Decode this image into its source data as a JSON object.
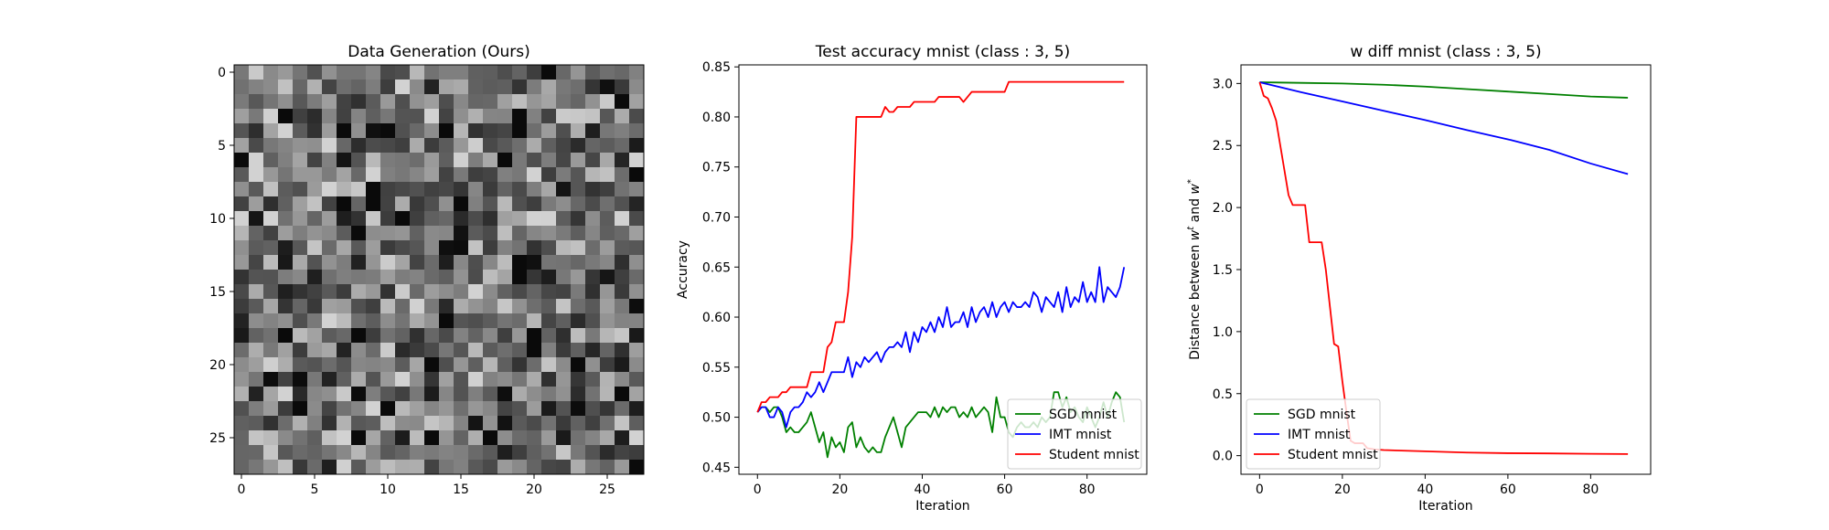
{
  "chart_data": [
    {
      "type": "heatmap",
      "title": "Data Generation (Ours)",
      "xlabel": "",
      "ylabel": "",
      "rows": 28,
      "cols": 28,
      "colormap": "gray",
      "xlim": [
        -0.5,
        27.5
      ],
      "ylim": [
        27.5,
        -0.5
      ],
      "xticks": [
        0,
        5,
        10,
        15,
        20,
        25
      ],
      "yticks": [
        0,
        5,
        10,
        15,
        20,
        25
      ],
      "values_note": "random noise pattern, grayscale intensities in [0,1]"
    },
    {
      "type": "line",
      "title": "Test accuracy mnist (class : 3, 5)",
      "xlabel": "Iteration",
      "ylabel": "Accuracy",
      "xlim": [
        -4.5,
        94.5
      ],
      "ylim": [
        0.443,
        0.852
      ],
      "xticks": [
        0,
        20,
        40,
        60,
        80
      ],
      "yticks": [
        0.45,
        0.5,
        0.55,
        0.6,
        0.65,
        0.7,
        0.75,
        0.8,
        0.85
      ],
      "legend": "lower-right",
      "series": [
        {
          "name": "SGD mnist",
          "color": "#008000",
          "values": [
            0.505,
            0.51,
            0.51,
            0.505,
            0.51,
            0.51,
            0.5,
            0.485,
            0.49,
            0.485,
            0.485,
            0.49,
            0.495,
            0.505,
            0.49,
            0.475,
            0.485,
            0.46,
            0.48,
            0.47,
            0.475,
            0.465,
            0.49,
            0.495,
            0.47,
            0.48,
            0.47,
            0.465,
            0.47,
            0.465,
            0.465,
            0.48,
            0.49,
            0.5,
            0.485,
            0.47,
            0.49,
            0.495,
            0.5,
            0.505,
            0.505,
            0.505,
            0.5,
            0.51,
            0.5,
            0.51,
            0.505,
            0.51,
            0.51,
            0.5,
            0.505,
            0.5,
            0.51,
            0.5,
            0.505,
            0.51,
            0.505,
            0.485,
            0.52,
            0.5,
            0.5,
            0.485,
            0.48,
            0.49,
            0.495,
            0.49,
            0.49,
            0.495,
            0.49,
            0.5,
            0.495,
            0.5,
            0.525,
            0.525,
            0.51,
            0.52,
            0.505,
            0.51,
            0.5,
            0.495,
            0.51,
            0.5,
            0.49,
            0.5,
            0.515,
            0.5,
            0.515,
            0.525,
            0.52,
            0.495
          ]
        },
        {
          "name": "IMT mnist",
          "color": "#0000ff",
          "values": [
            0.505,
            0.51,
            0.51,
            0.5,
            0.5,
            0.51,
            0.505,
            0.49,
            0.505,
            0.51,
            0.51,
            0.515,
            0.525,
            0.52,
            0.525,
            0.535,
            0.525,
            0.535,
            0.545,
            0.545,
            0.545,
            0.545,
            0.56,
            0.54,
            0.555,
            0.55,
            0.56,
            0.555,
            0.56,
            0.565,
            0.555,
            0.565,
            0.57,
            0.57,
            0.575,
            0.57,
            0.585,
            0.565,
            0.585,
            0.575,
            0.59,
            0.585,
            0.595,
            0.585,
            0.6,
            0.59,
            0.61,
            0.59,
            0.595,
            0.595,
            0.605,
            0.59,
            0.61,
            0.595,
            0.605,
            0.61,
            0.6,
            0.615,
            0.6,
            0.61,
            0.615,
            0.605,
            0.615,
            0.61,
            0.61,
            0.615,
            0.61,
            0.625,
            0.62,
            0.605,
            0.62,
            0.615,
            0.61,
            0.625,
            0.605,
            0.63,
            0.61,
            0.62,
            0.615,
            0.635,
            0.615,
            0.625,
            0.615,
            0.65,
            0.615,
            0.63,
            0.625,
            0.62,
            0.63,
            0.65
          ]
        },
        {
          "name": "Student mnist",
          "color": "#ff0000",
          "values": [
            0.505,
            0.515,
            0.515,
            0.52,
            0.52,
            0.52,
            0.525,
            0.525,
            0.53,
            0.53,
            0.53,
            0.53,
            0.53,
            0.545,
            0.545,
            0.545,
            0.545,
            0.57,
            0.575,
            0.595,
            0.595,
            0.595,
            0.625,
            0.68,
            0.8,
            0.8,
            0.8,
            0.8,
            0.8,
            0.8,
            0.8,
            0.81,
            0.805,
            0.805,
            0.81,
            0.81,
            0.81,
            0.81,
            0.815,
            0.815,
            0.815,
            0.815,
            0.815,
            0.815,
            0.82,
            0.82,
            0.82,
            0.82,
            0.82,
            0.82,
            0.815,
            0.82,
            0.825,
            0.825,
            0.825,
            0.825,
            0.825,
            0.825,
            0.825,
            0.825,
            0.825,
            0.835,
            0.835,
            0.835,
            0.835,
            0.835,
            0.835,
            0.835,
            0.835,
            0.835,
            0.835,
            0.835,
            0.835,
            0.835,
            0.835,
            0.835,
            0.835,
            0.835,
            0.835,
            0.835,
            0.835,
            0.835,
            0.835,
            0.835,
            0.835,
            0.835,
            0.835,
            0.835,
            0.835,
            0.835
          ]
        }
      ]
    },
    {
      "type": "line",
      "title": "w diff mnist (class : 3, 5)",
      "xlabel": "Iteration",
      "ylabel": "Distance between w^t and w^*",
      "ylabel_main": "Distance between",
      "ylabel_w1": "w",
      "ylabel_w1_sup": "t",
      "ylabel_and": " and ",
      "ylabel_w2": "w",
      "ylabel_w2_sup": "*",
      "xlim": [
        -4.5,
        94.5
      ],
      "ylim": [
        -0.15,
        3.15
      ],
      "xticks": [
        0,
        20,
        40,
        60,
        80
      ],
      "yticks": [
        0.0,
        0.5,
        1.0,
        1.5,
        2.0,
        2.5,
        3.0
      ],
      "legend": "lower-left",
      "series": [
        {
          "name": "SGD mnist",
          "color": "#008000",
          "points": [
            [
              0,
              3.01
            ],
            [
              10,
              3.005
            ],
            [
              20,
              3.0
            ],
            [
              30,
              2.99
            ],
            [
              40,
              2.975
            ],
            [
              50,
              2.955
            ],
            [
              60,
              2.935
            ],
            [
              70,
              2.915
            ],
            [
              80,
              2.895
            ],
            [
              89,
              2.885
            ]
          ]
        },
        {
          "name": "IMT mnist",
          "color": "#0000ff",
          "points": [
            [
              0,
              3.01
            ],
            [
              10,
              2.93
            ],
            [
              20,
              2.855
            ],
            [
              30,
              2.78
            ],
            [
              40,
              2.705
            ],
            [
              50,
              2.625
            ],
            [
              60,
              2.55
            ],
            [
              70,
              2.465
            ],
            [
              80,
              2.355
            ],
            [
              89,
              2.27
            ]
          ]
        },
        {
          "name": "Student mnist",
          "color": "#ff0000",
          "points": [
            [
              0,
              3.01
            ],
            [
              1,
              2.9
            ],
            [
              2,
              2.88
            ],
            [
              3,
              2.8
            ],
            [
              4,
              2.7
            ],
            [
              5,
              2.5
            ],
            [
              6,
              2.3
            ],
            [
              7,
              2.1
            ],
            [
              8,
              2.02
            ],
            [
              11,
              2.02
            ],
            [
              12,
              1.72
            ],
            [
              15,
              1.72
            ],
            [
              16,
              1.5
            ],
            [
              17,
              1.2
            ],
            [
              18,
              0.9
            ],
            [
              19,
              0.88
            ],
            [
              20,
              0.6
            ],
            [
              21,
              0.35
            ],
            [
              22,
              0.12
            ],
            [
              23,
              0.1
            ],
            [
              25,
              0.1
            ],
            [
              26,
              0.06
            ],
            [
              28,
              0.05
            ],
            [
              30,
              0.045
            ],
            [
              40,
              0.035
            ],
            [
              50,
              0.025
            ],
            [
              60,
              0.02
            ],
            [
              70,
              0.018
            ],
            [
              80,
              0.015
            ],
            [
              89,
              0.013
            ]
          ]
        }
      ]
    }
  ]
}
